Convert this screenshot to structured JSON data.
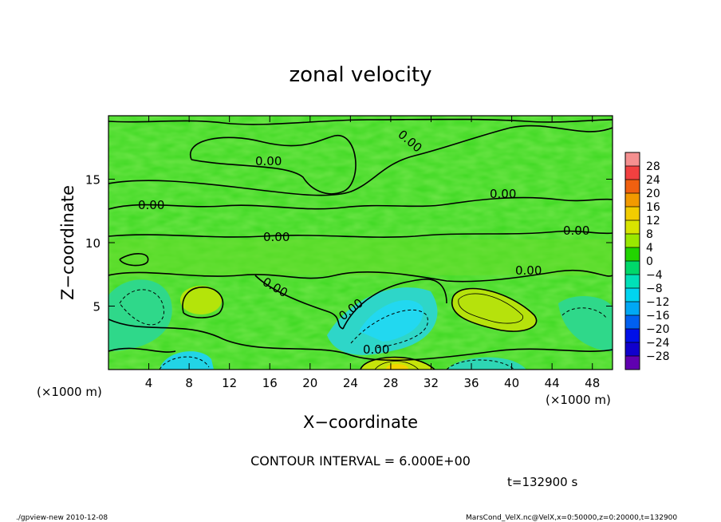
{
  "chart_data": {
    "type": "heatmap",
    "title": "zonal velocity",
    "xlabel": "X−coordinate",
    "ylabel": "Z−coordinate",
    "x_unit": "(×1000 m)",
    "y_unit": "(×1000 m)",
    "xlim": [
      0,
      50
    ],
    "ylim": [
      0,
      20
    ],
    "x_ticks": [
      4,
      8,
      12,
      16,
      20,
      24,
      28,
      32,
      36,
      40,
      44,
      48
    ],
    "y_ticks": [
      5,
      10,
      15
    ],
    "colorbar_ticks": [
      "28",
      "24",
      "20",
      "16",
      "12",
      "8",
      "4",
      "0",
      "−4",
      "−8",
      "−12",
      "−16",
      "−20",
      "−24",
      "−28"
    ],
    "colorbar_colors": [
      "#f59090",
      "#f24040",
      "#f06010",
      "#f29a00",
      "#f2cc00",
      "#d8e400",
      "#9ae800",
      "#22d400",
      "#00d86a",
      "#00e0b8",
      "#00d4f0",
      "#00a8f4",
      "#0060f0",
      "#0010e8",
      "#1000cc",
      "#6000b0"
    ],
    "contour_interval": "CONTOUR INTERVAL = 6.000E+00",
    "contour_labels": [
      "0.00",
      "0.00",
      "0.00",
      "0.00",
      "0.00",
      "0.00",
      "0.00",
      "0.00",
      "0.00",
      "0.00"
    ],
    "regions": [
      {
        "label": "positive",
        "x": 8.5,
        "z": 5.5,
        "value": 8
      },
      {
        "label": "positive",
        "x": 37,
        "z": 4.5,
        "value": 10
      },
      {
        "label": "negative",
        "x": 28,
        "z": 4.5,
        "value": -8
      },
      {
        "label": "negative",
        "x": 8,
        "z": 1,
        "value": -10
      },
      {
        "label": "positive",
        "x": 29,
        "z": 0.5,
        "value": 14
      }
    ],
    "grid": false
  },
  "annotations": {
    "time": "t=132900 s",
    "footer_left": "./gpview-new  2010-12-08",
    "footer_right": "MarsCond_VelX.nc@VelX,x=0:50000,z=0:20000,t=132900"
  }
}
